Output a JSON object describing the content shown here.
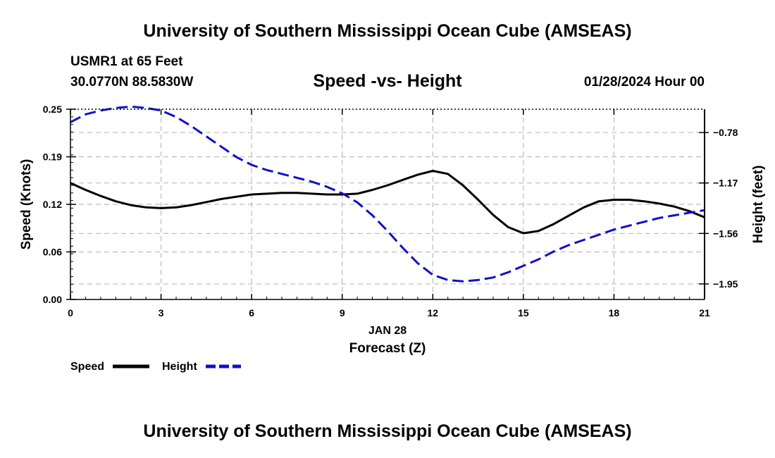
{
  "page": {
    "title_top": "University of Southern Mississippi Ocean Cube (AMSEAS)",
    "title_bottom": "University of Southern Mississippi Ocean Cube (AMSEAS)",
    "station": "USMR1 at 65 Feet",
    "location": "30.0770N  88.5830W",
    "datetime": "01/28/2024 Hour 00"
  },
  "chart_data": {
    "type": "line",
    "title": "Speed -vs- Height",
    "xlabel_date": "JAN 28",
    "xlabel": "Forecast (Z)",
    "ylabel_left": "Speed (Knots)",
    "ylabel_right": "Height (feet)",
    "xlim": [
      0,
      21
    ],
    "x_ticks": [
      "0",
      "3",
      "6",
      "9",
      "12",
      "15",
      "18",
      "21"
    ],
    "x_tick_values": [
      0,
      3,
      6,
      9,
      12,
      15,
      18,
      21
    ],
    "ylim_left": [
      0,
      0.25
    ],
    "y_ticks_left": [
      "0.00",
      "0.06",
      "0.12",
      "0.19",
      "0.25"
    ],
    "y_tick_values_left": [
      0,
      0.0625,
      0.125,
      0.1875,
      0.25
    ],
    "ylim_right": [
      -2.07,
      -0.6
    ],
    "y_ticks_right": [
      "−1.95",
      "−1.56",
      "−1.17",
      "−0.78"
    ],
    "y_tick_values_right": [
      -1.95,
      -1.56,
      -1.17,
      -0.78
    ],
    "series": [
      {
        "name": "Speed",
        "axis": "left",
        "color": "#000000",
        "dash": "solid",
        "x": [
          0,
          0.5,
          1,
          1.5,
          2,
          2.5,
          3,
          3.5,
          4,
          4.5,
          5,
          5.5,
          6,
          6.5,
          7,
          7.5,
          8,
          8.5,
          9,
          9.5,
          10,
          10.5,
          11,
          11.5,
          12,
          12.5,
          13,
          13.5,
          14,
          14.5,
          15,
          15.5,
          16,
          16.5,
          17,
          17.5,
          18,
          18.5,
          19,
          19.5,
          20,
          20.5,
          21
        ],
        "values": [
          0.153,
          0.144,
          0.136,
          0.129,
          0.124,
          0.121,
          0.12,
          0.121,
          0.124,
          0.128,
          0.132,
          0.135,
          0.138,
          0.139,
          0.14,
          0.14,
          0.139,
          0.138,
          0.138,
          0.139,
          0.144,
          0.15,
          0.157,
          0.164,
          0.169,
          0.165,
          0.15,
          0.131,
          0.111,
          0.095,
          0.087,
          0.09,
          0.099,
          0.11,
          0.121,
          0.129,
          0.131,
          0.131,
          0.129,
          0.126,
          0.122,
          0.116,
          0.108
        ]
      },
      {
        "name": "Height",
        "axis": "right",
        "color": "#1010cc",
        "dash": "dashed",
        "x": [
          0,
          0.5,
          1,
          1.5,
          2,
          2.5,
          3,
          3.5,
          4,
          4.5,
          5,
          5.5,
          6,
          6.5,
          7,
          7.5,
          8,
          8.5,
          9,
          9.5,
          10,
          10.5,
          11,
          11.5,
          12,
          12.5,
          13,
          13.5,
          14,
          14.5,
          15,
          15.5,
          16,
          16.5,
          17,
          17.5,
          18,
          18.5,
          19,
          19.5,
          20,
          20.5,
          21
        ],
        "values": [
          -0.7,
          -0.64,
          -0.61,
          -0.59,
          -0.58,
          -0.59,
          -0.61,
          -0.66,
          -0.73,
          -0.81,
          -0.89,
          -0.97,
          -1.03,
          -1.07,
          -1.1,
          -1.13,
          -1.16,
          -1.2,
          -1.25,
          -1.32,
          -1.42,
          -1.54,
          -1.67,
          -1.79,
          -1.88,
          -1.92,
          -1.93,
          -1.92,
          -1.9,
          -1.86,
          -1.81,
          -1.76,
          -1.7,
          -1.65,
          -1.61,
          -1.57,
          -1.53,
          -1.5,
          -1.47,
          -1.44,
          -1.42,
          -1.4,
          -1.38
        ]
      }
    ],
    "legend": [
      {
        "label": "Speed",
        "color": "#000000",
        "dash": "solid"
      },
      {
        "label": "Height",
        "color": "#1010cc",
        "dash": "dashed"
      }
    ],
    "grid": true
  }
}
